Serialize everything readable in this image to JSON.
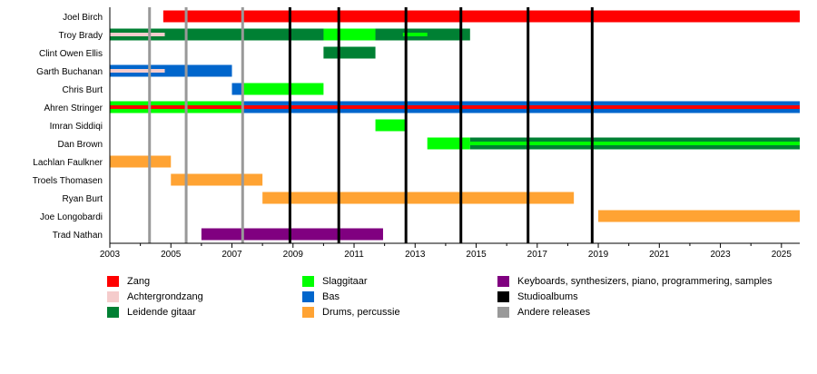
{
  "chart_data": {
    "type": "timeline",
    "x_axis": {
      "min": 2003.0,
      "max": 2025.6,
      "tick_labels": [
        "2003",
        "2005",
        "2007",
        "2009",
        "2011",
        "2013",
        "2015",
        "2017",
        "2019",
        "2021",
        "2023",
        "2025"
      ]
    },
    "members": [
      {
        "name": "Joel Birch",
        "bars": [
          {
            "role": "zang",
            "start": 2004.75,
            "end": 2025.6
          }
        ]
      },
      {
        "name": "Troy Brady",
        "bars": [
          {
            "role": "leidende",
            "start": 2003.0,
            "end": 2014.8
          },
          {
            "role": "slag",
            "start": 2010.0,
            "end": 2011.7
          },
          {
            "role": "achter",
            "start": 2003.0,
            "end": 2004.8,
            "overlay": true
          },
          {
            "role": "slag",
            "start": 2012.6,
            "end": 2013.4,
            "overlay": true
          }
        ]
      },
      {
        "name": "Clint Owen Ellis",
        "bars": [
          {
            "role": "leidende",
            "start": 2010.0,
            "end": 2011.7
          }
        ]
      },
      {
        "name": "Garth Buchanan",
        "bars": [
          {
            "role": "bas",
            "start": 2003.0,
            "end": 2007.0
          },
          {
            "role": "achter",
            "start": 2003.0,
            "end": 2004.8,
            "overlay": true
          }
        ]
      },
      {
        "name": "Chris Burt",
        "bars": [
          {
            "role": "bas",
            "start": 2007.0,
            "end": 2007.35
          },
          {
            "role": "slag",
            "start": 2007.35,
            "end": 2010.0
          }
        ]
      },
      {
        "name": "Ahren Stringer",
        "bars": [
          {
            "role": "slag",
            "start": 2003.0,
            "end": 2007.35
          },
          {
            "role": "bas",
            "start": 2007.35,
            "end": 2025.6
          },
          {
            "role": "zang",
            "start": 2003.0,
            "end": 2025.6,
            "overlay": true
          }
        ]
      },
      {
        "name": "Imran Siddiqi",
        "bars": [
          {
            "role": "slag",
            "start": 2011.7,
            "end": 2012.7
          }
        ]
      },
      {
        "name": "Dan Brown",
        "bars": [
          {
            "role": "slag",
            "start": 2013.4,
            "end": 2014.8
          },
          {
            "role": "leidende",
            "start": 2014.8,
            "end": 2025.6
          },
          {
            "role": "slag",
            "start": 2014.8,
            "end": 2025.6,
            "overlay": true
          }
        ]
      },
      {
        "name": "Lachlan Faulkner",
        "bars": [
          {
            "role": "drums",
            "start": 2003.0,
            "end": 2005.0
          }
        ]
      },
      {
        "name": "Troels Thomasen",
        "bars": [
          {
            "role": "drums",
            "start": 2005.0,
            "end": 2008.0
          }
        ]
      },
      {
        "name": "Ryan Burt",
        "bars": [
          {
            "role": "drums",
            "start": 2008.0,
            "end": 2018.2
          }
        ]
      },
      {
        "name": "Joe Longobardi",
        "bars": [
          {
            "role": "drums",
            "start": 2019.0,
            "end": 2025.6
          }
        ]
      },
      {
        "name": "Trad Nathan",
        "bars": [
          {
            "role": "keys",
            "start": 2006.0,
            "end": 2011.95
          }
        ]
      }
    ],
    "studio_albums": [
      2008.9,
      2010.5,
      2012.7,
      2014.5,
      2016.7,
      2018.8
    ],
    "other_releases": [
      2004.3,
      2005.5,
      2007.35
    ]
  },
  "colors": {
    "zang": "#ff0000",
    "achter": "#f5cccc",
    "leidende": "#008033",
    "slag": "#00ff00",
    "bas": "#0066cc",
    "drums": "#ffa333",
    "keys": "#800080",
    "studio": "#000000",
    "other": "#999999"
  },
  "legend": [
    {
      "label": "Zang",
      "color": "#ff0000"
    },
    {
      "label": "Achtergrondzang",
      "color": "#f5cccc"
    },
    {
      "label": "Leidende gitaar",
      "color": "#008033"
    },
    {
      "label": "Slaggitaar",
      "color": "#00ff00"
    },
    {
      "label": "Bas",
      "color": "#0066cc"
    },
    {
      "label": "Drums, percussie",
      "color": "#ffa333"
    },
    {
      "label": "Keyboards, synthesizers, piano, programmering, samples",
      "color": "#800080"
    },
    {
      "label": "Studioalbums",
      "color": "#000000"
    },
    {
      "label": "Andere releases",
      "color": "#999999"
    }
  ]
}
